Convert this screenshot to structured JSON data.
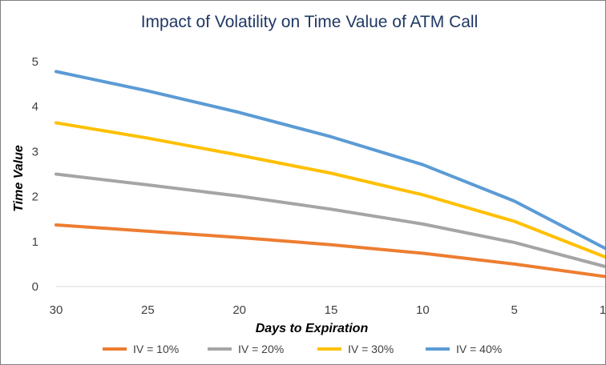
{
  "chart_data": {
    "type": "line",
    "title": "Impact of Volatility on Time Value of ATM Call",
    "xlabel": "Days to Expiration",
    "ylabel": "Time Value",
    "categories": [
      "30",
      "25",
      "20",
      "15",
      "10",
      "5",
      "1"
    ],
    "ylim": [
      0,
      5
    ],
    "yticks": [
      "0",
      "1",
      "2",
      "3",
      "4",
      "5"
    ],
    "grid": false,
    "legend_position": "bottom",
    "series": [
      {
        "name": "IV = 10%",
        "color": "#ed7d31",
        "values": [
          1.37,
          1.23,
          1.09,
          0.93,
          0.74,
          0.5,
          0.22
        ]
      },
      {
        "name": "IV = 20%",
        "color": "#a5a5a5",
        "values": [
          2.5,
          2.26,
          2.01,
          1.72,
          1.39,
          0.98,
          0.44
        ]
      },
      {
        "name": "IV = 30%",
        "color": "#ffc000",
        "values": [
          3.64,
          3.3,
          2.92,
          2.52,
          2.04,
          1.45,
          0.65
        ]
      },
      {
        "name": "IV = 40%",
        "color": "#5b9bd5",
        "values": [
          4.78,
          4.35,
          3.87,
          3.33,
          2.71,
          1.9,
          0.84
        ]
      }
    ]
  }
}
